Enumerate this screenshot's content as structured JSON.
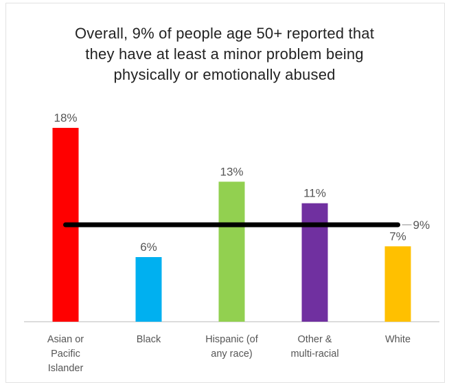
{
  "chart_data": {
    "type": "bar",
    "title": "Overall, 9% of people age 50+ reported that they have at least a minor problem being physically or emotionally abused",
    "title_lines": [
      "Overall, 9% of people age 50+ reported that",
      "they have at least a minor problem being",
      "physically or emotionally abused"
    ],
    "categories": [
      "Asian or Pacific Islander",
      "Black",
      "Hispanic (of any race)",
      "Other & multi-racial",
      "White"
    ],
    "category_lines": [
      [
        "Asian or",
        "Pacific",
        "Islander"
      ],
      [
        "Black"
      ],
      [
        "Hispanic (of",
        "any race)"
      ],
      [
        "Other &",
        "multi-racial"
      ],
      [
        "White"
      ]
    ],
    "values": [
      18,
      6,
      13,
      11,
      7
    ],
    "data_labels": [
      "18%",
      "6%",
      "13%",
      "11%",
      "7%"
    ],
    "colors": [
      "#ff0000",
      "#00b0f0",
      "#92d050",
      "#7030a0",
      "#ffc000"
    ],
    "reference_line": {
      "value": 9,
      "label": "9%",
      "color": "#000000"
    },
    "ylim": [
      0,
      18
    ],
    "xlabel": "",
    "ylabel": "",
    "grid": false,
    "legend": "none"
  }
}
